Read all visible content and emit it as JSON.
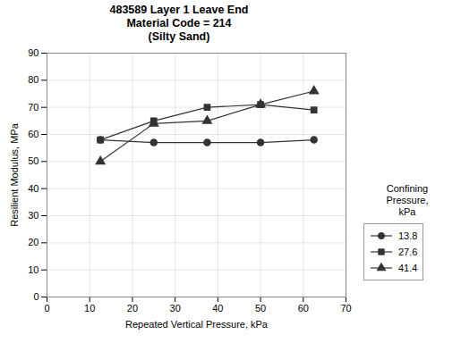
{
  "chart_data": {
    "type": "line",
    "title": "483589 Layer 1 Leave End\nMaterial Code = 214\n(Silty Sand)",
    "x_label": "Repeated Vertical Pressure, kPa",
    "y_label": "Resilient Modulus, MPa",
    "legend_title": "Confining\nPressure,\nkPa",
    "x": [
      12.5,
      25,
      37.5,
      50,
      62.5
    ],
    "series": [
      {
        "name": "13.8",
        "color": "#333333",
        "marker": "circle",
        "values": [
          58,
          57,
          57,
          57,
          58
        ]
      },
      {
        "name": "27.6",
        "color": "#333333",
        "marker": "square",
        "values": [
          58,
          65,
          70,
          71,
          69
        ]
      },
      {
        "name": "41.4",
        "color": "#333333",
        "marker": "triangle",
        "values": [
          50,
          64,
          65,
          71,
          76
        ]
      }
    ],
    "xlim": [
      0,
      70
    ],
    "ylim": [
      0,
      90
    ],
    "xticks": [
      0,
      10,
      20,
      30,
      40,
      50,
      60,
      70
    ],
    "yticks": [
      0,
      10,
      20,
      30,
      40,
      50,
      60,
      70,
      80,
      90
    ],
    "grid": true,
    "legend": "right"
  }
}
